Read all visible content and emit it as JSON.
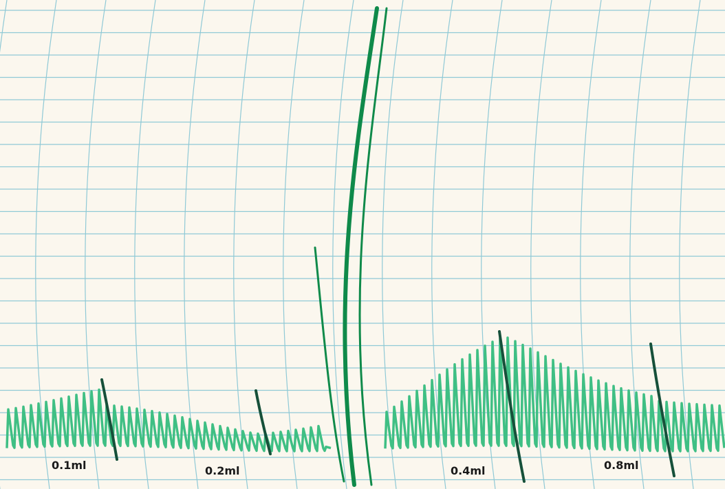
{
  "labels": [
    "0.1ml",
    "0.2ml",
    "0.4ml",
    "0.8ml"
  ]
}
